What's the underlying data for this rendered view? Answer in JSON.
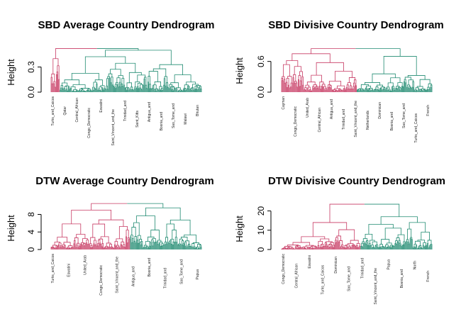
{
  "colors": {
    "cluster_1": "#c73a63",
    "cluster_2": "#1f8a70",
    "axis": "#000000"
  },
  "chart_data": [
    {
      "type": "dendrogram",
      "title": "SBD Average Country Dendrogram",
      "ylabel": "Height",
      "yticks": [
        0.0,
        0.3
      ],
      "ytick_labels": [
        "0.0",
        "0.3"
      ],
      "ylim": [
        0,
        0.55
      ],
      "root_height": 0.52,
      "cluster_heights": [
        0.4,
        0.5
      ],
      "cluster_sizes": [
        12,
        188
      ],
      "leaf_count": 200,
      "visible_leaf_labels": [
        "Turks_and_Caicos",
        "Qatar",
        "Central_African",
        "Congo_Democratic",
        "Eswatini",
        "Saint_Vincent_and_the",
        "Trinidad_and",
        "Saint_Kitts",
        "Antigua_and",
        "Bosnia_and",
        "Sao_Tome_and",
        "Malawi",
        "Bhutan"
      ]
    },
    {
      "type": "dendrogram",
      "title": "SBD Divisive Country Dendrogram",
      "ylabel": "Height",
      "yticks": [
        0.0,
        0.6
      ],
      "ytick_labels": [
        "0.0",
        "0.6"
      ],
      "ylim": [
        0,
        0.9
      ],
      "root_height": 0.85,
      "cluster_heights": [
        0.75,
        0.7
      ],
      "cluster_sizes": [
        100,
        100
      ],
      "leaf_count": 200,
      "visible_leaf_labels": [
        "Cayman",
        "Congo_Democratic",
        "United_Arab",
        "Central_African",
        "Antigua_and",
        "Trinidad_and",
        "Saint_Vincent_and_the",
        "Netherlands",
        "Dominican",
        "Bosnia_and",
        "Sao_Tome_and",
        "Turks_and_Caicos",
        "French"
      ]
    },
    {
      "type": "dendrogram",
      "title": "DTW Average Country Dendrogram",
      "ylabel": "Height",
      "yticks": [
        0,
        4,
        8
      ],
      "ytick_labels": [
        "0",
        "4",
        "8"
      ],
      "ylim": [
        0,
        11
      ],
      "root_height": 10.5,
      "cluster_heights": [
        9.0,
        9.5
      ],
      "cluster_sizes": [
        105,
        95
      ],
      "leaf_count": 200,
      "visible_leaf_labels": [
        "Turks_and_Caicos",
        "Eswatini",
        "United_Arab",
        "Congo_Democratic",
        "Saint_Vincent_and_the",
        "Antigua_and",
        "Bosnia_and",
        "Trinidad_and",
        "Sao_Tome_and",
        "Papua"
      ]
    },
    {
      "type": "dendrogram",
      "title": "DTW Divisive Country Dendrogram",
      "ylabel": "Height",
      "yticks": [
        0,
        10,
        20
      ],
      "ytick_labels": [
        "0",
        "10",
        "20"
      ],
      "ylim": [
        0,
        25
      ],
      "root_height": 23.5,
      "cluster_heights": [
        14.0,
        17.0
      ],
      "cluster_sizes": [
        105,
        95
      ],
      "leaf_count": 200,
      "visible_leaf_labels": [
        "Congo_Democratic",
        "Central_African",
        "Eswatini",
        "Turks_and_Caicos",
        "Dominican",
        "Sao_Tome_and",
        "Trinidad_and",
        "Saint_Vincent_and_the",
        "Papua",
        "Bosnia_and",
        "North",
        "French"
      ]
    }
  ]
}
